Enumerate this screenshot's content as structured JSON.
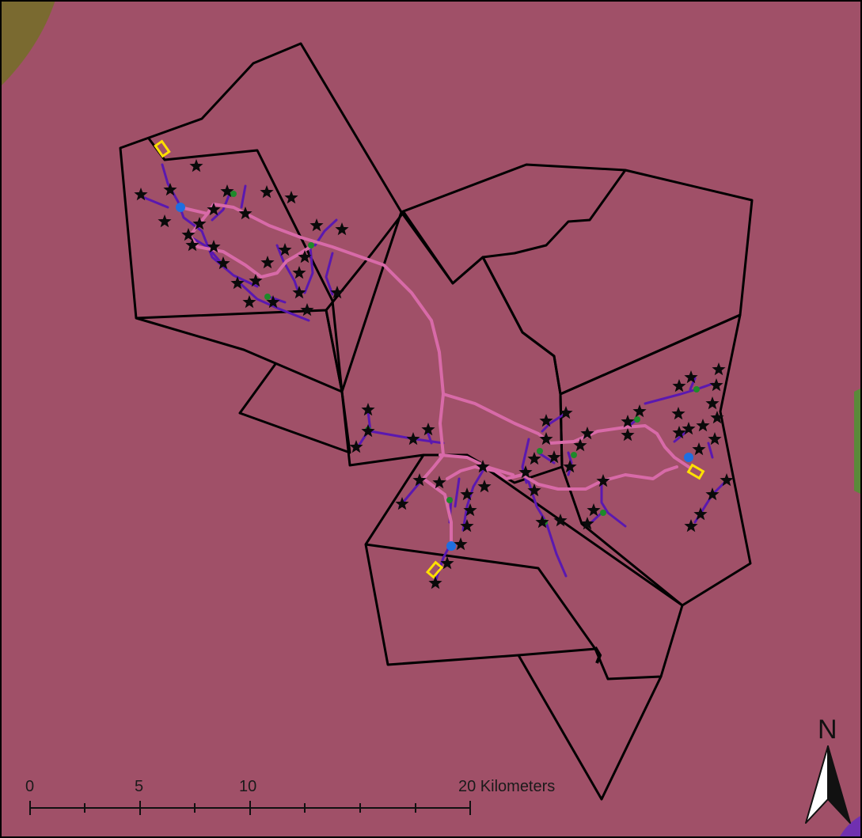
{
  "map": {
    "background_color": "#a05068",
    "boundary_color": "#000000",
    "main_road_color": "#d86aa8",
    "branch_line_color": "#5a18b0",
    "star_marker_color": "#0a0a0a",
    "green_node_color": "#1e8a2a",
    "blue_node_color": "#1f6fe0",
    "yellow_marker_color": "#ffe000",
    "corner_area_color": "#7a6a30",
    "edge_area_right_color": "#5a8a3a",
    "edge_area_purple_color": "#7030b0",
    "star_marker_icon": "star-icon",
    "node_icon": "circle-icon",
    "yellow_marker_icon": "rectangle-icon"
  },
  "scale_bar": {
    "tick_labels": [
      "0",
      "5",
      "10",
      "20 Kilometers"
    ]
  },
  "north_arrow": {
    "label": "N",
    "icon": "north-arrow-icon"
  }
}
